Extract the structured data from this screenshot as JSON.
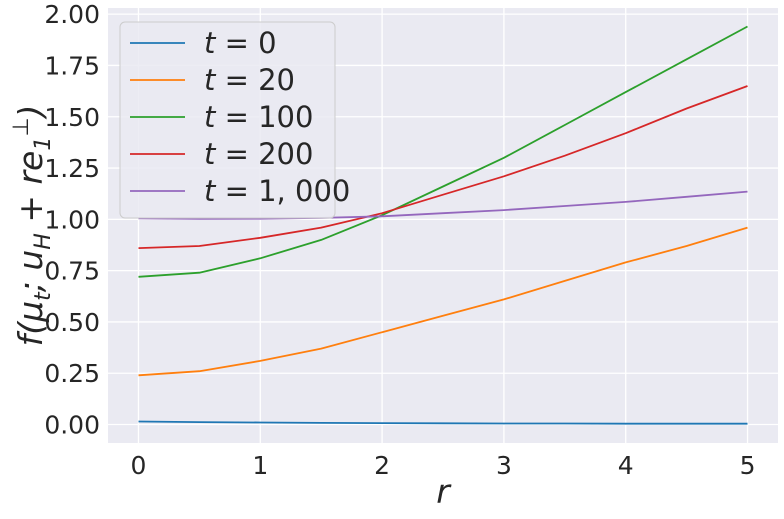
{
  "chart_data": {
    "type": "line",
    "title": "",
    "xlabel": "r",
    "ylabel": "f(μ_t; u_H + r e_1^⊥)",
    "xlim": [
      -0.25,
      5.25
    ],
    "ylim": [
      -0.09,
      2.03
    ],
    "xticks": [
      0,
      1,
      2,
      3,
      4,
      5
    ],
    "xtick_labels": [
      "0",
      "1",
      "2",
      "3",
      "4",
      "5"
    ],
    "yticks": [
      0,
      0.25,
      0.5,
      0.75,
      1.0,
      1.25,
      1.5,
      1.75,
      2.0
    ],
    "ytick_labels": [
      "0.00",
      "0.25",
      "0.50",
      "0.75",
      "1.00",
      "1.25",
      "1.50",
      "1.75",
      "2.00"
    ],
    "grid": true,
    "style": "seaborn-darkgrid",
    "background": "#eaeaf2",
    "legend_position": "top-left",
    "x": [
      0,
      0.5,
      1,
      1.5,
      2,
      2.5,
      3,
      3.5,
      4,
      4.5,
      5
    ],
    "series": [
      {
        "name": "t = 0",
        "var": "t",
        "val": "0",
        "color": "#1f77b4",
        "values": [
          0.015,
          0.012,
          0.01,
          0.008,
          0.007,
          0.006,
          0.005,
          0.005,
          0.004,
          0.004,
          0.004
        ]
      },
      {
        "name": "t = 20",
        "var": "t",
        "val": "20",
        "color": "#ff7f0e",
        "values": [
          0.24,
          0.26,
          0.31,
          0.37,
          0.45,
          0.53,
          0.61,
          0.7,
          0.79,
          0.87,
          0.96
        ]
      },
      {
        "name": "t = 100",
        "var": "t",
        "val": "100",
        "color": "#2ca02c",
        "values": [
          0.72,
          0.74,
          0.81,
          0.9,
          1.02,
          1.16,
          1.3,
          1.46,
          1.62,
          1.78,
          1.94
        ]
      },
      {
        "name": "t = 200",
        "var": "t",
        "val": "200",
        "color": "#d62728",
        "values": [
          0.86,
          0.87,
          0.91,
          0.96,
          1.03,
          1.12,
          1.21,
          1.31,
          1.42,
          1.54,
          1.65
        ]
      },
      {
        "name": "t = 1, 000",
        "var": "t",
        "val": "1, 000",
        "color": "#9467bd",
        "values": [
          1.005,
          1.002,
          1.003,
          1.007,
          1.015,
          1.03,
          1.045,
          1.065,
          1.085,
          1.11,
          1.135
        ]
      }
    ]
  }
}
